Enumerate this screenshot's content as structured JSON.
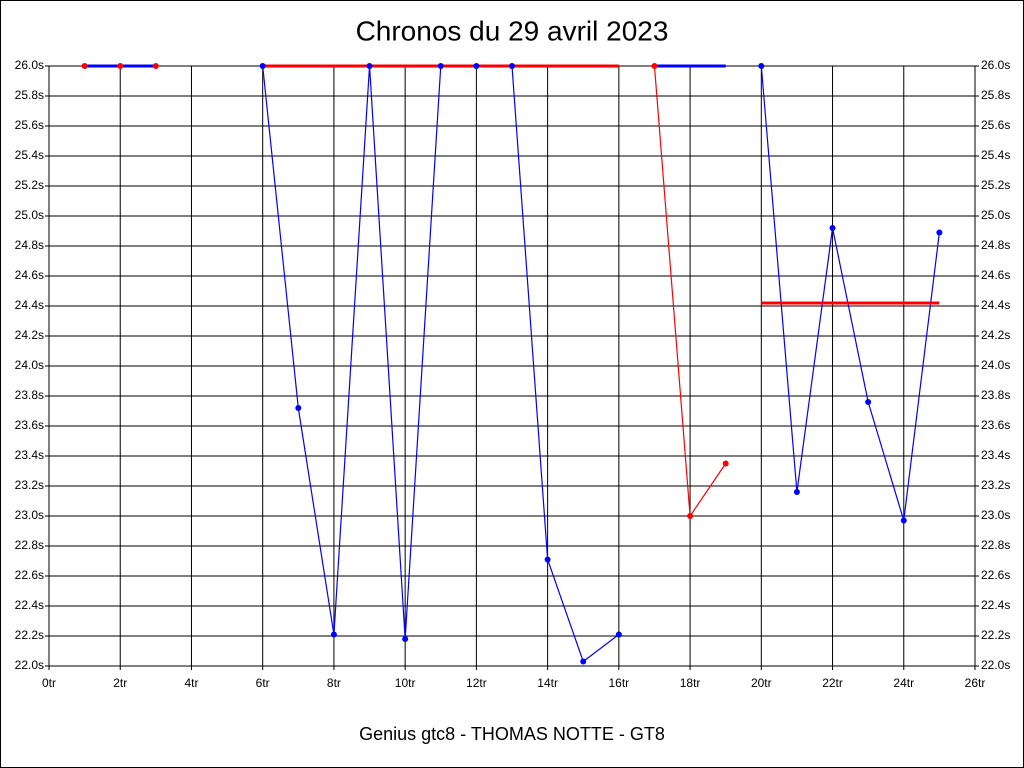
{
  "chart_data": {
    "type": "line",
    "title": "Chronos du 29 avril 2023",
    "xlabel": "Genius gtc8 - THOMAS NOTTE - GT8",
    "xlim": [
      0,
      26
    ],
    "xticks": [
      {
        "value": 0,
        "label": "0tr"
      },
      {
        "value": 2,
        "label": "2tr"
      },
      {
        "value": 4,
        "label": "4tr"
      },
      {
        "value": 6,
        "label": "6tr"
      },
      {
        "value": 8,
        "label": "8tr"
      },
      {
        "value": 10,
        "label": "10tr"
      },
      {
        "value": 12,
        "label": "12tr"
      },
      {
        "value": 14,
        "label": "14tr"
      },
      {
        "value": 16,
        "label": "16tr"
      },
      {
        "value": 18,
        "label": "18tr"
      },
      {
        "value": 20,
        "label": "20tr"
      },
      {
        "value": 22,
        "label": "22tr"
      },
      {
        "value": 24,
        "label": "24tr"
      },
      {
        "value": 26,
        "label": "26tr"
      }
    ],
    "ylim": [
      22.0,
      26.0
    ],
    "yticks": [
      {
        "value": 22.0,
        "label": "22.0s"
      },
      {
        "value": 22.2,
        "label": "22.2s"
      },
      {
        "value": 22.4,
        "label": "22.4s"
      },
      {
        "value": 22.6,
        "label": "22.6s"
      },
      {
        "value": 22.8,
        "label": "22.8s"
      },
      {
        "value": 23.0,
        "label": "23.0s"
      },
      {
        "value": 23.2,
        "label": "23.2s"
      },
      {
        "value": 23.4,
        "label": "23.4s"
      },
      {
        "value": 23.6,
        "label": "23.6s"
      },
      {
        "value": 23.8,
        "label": "23.8s"
      },
      {
        "value": 24.0,
        "label": "24.0s"
      },
      {
        "value": 24.2,
        "label": "24.2s"
      },
      {
        "value": 24.4,
        "label": "24.4s"
      },
      {
        "value": 24.6,
        "label": "24.6s"
      },
      {
        "value": 24.8,
        "label": "24.8s"
      },
      {
        "value": 25.0,
        "label": "25.0s"
      },
      {
        "value": 25.2,
        "label": "25.2s"
      },
      {
        "value": 25.4,
        "label": "25.4s"
      },
      {
        "value": 25.6,
        "label": "25.6s"
      },
      {
        "value": 25.8,
        "label": "25.8s"
      },
      {
        "value": 26.0,
        "label": "26.0s"
      }
    ],
    "grid": true,
    "series": [
      {
        "color": "#ff0000",
        "x": [
          1,
          2,
          3
        ],
        "values": [
          26.0,
          26.0,
          26.0
        ]
      },
      {
        "color": "#0000ff",
        "x": [
          6,
          7,
          8,
          9,
          10,
          11,
          12,
          13,
          14,
          15,
          16
        ],
        "values": [
          26.0,
          23.72,
          22.21,
          26.0,
          22.18,
          26.0,
          26.0,
          26.0,
          22.71,
          22.03,
          22.21
        ]
      },
      {
        "color": "#ff0000",
        "x": [
          17,
          18,
          19
        ],
        "values": [
          26.0,
          23.0,
          23.35
        ]
      },
      {
        "color": "#0000ff",
        "x": [
          20,
          21,
          22,
          23,
          24,
          25
        ],
        "values": [
          26.0,
          23.16,
          24.92,
          23.76,
          22.97,
          24.89
        ]
      }
    ],
    "averages": [
      {
        "color": "#0000ff",
        "x": [
          1,
          3
        ],
        "value": 26.0
      },
      {
        "color": "#ff0000",
        "x": [
          6,
          16
        ],
        "value": 26.0
      },
      {
        "color": "#0000ff",
        "x": [
          17,
          19
        ],
        "value": 26.0
      },
      {
        "color": "#ff0000",
        "x": [
          20,
          25
        ],
        "value": 24.42
      }
    ]
  }
}
